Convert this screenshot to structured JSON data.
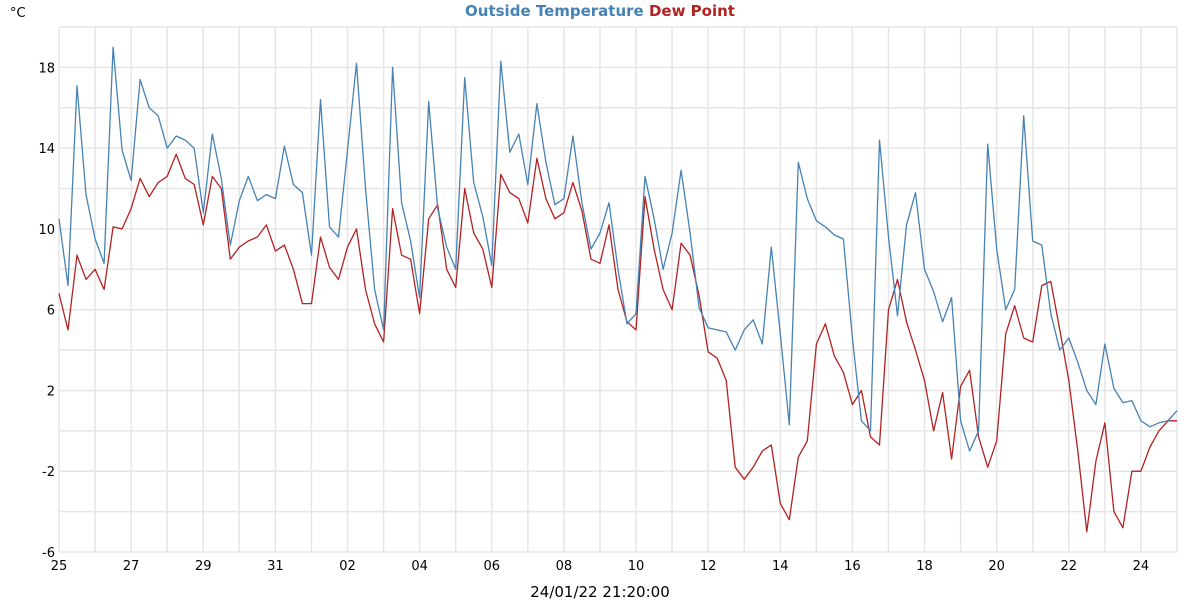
{
  "chart_data": {
    "type": "line",
    "title": "Outside Temperature Dew Point",
    "legend": [
      "Outside Temperature",
      "Dew Point"
    ],
    "ylabel": "°C",
    "xlabel": "24/01/22 21:20:00",
    "ylim": [
      -6,
      20
    ],
    "y_ticks": [
      -6,
      -2,
      2,
      6,
      10,
      14,
      18
    ],
    "y_grid_step": 2,
    "x_ticks": [
      "25",
      "27",
      "29",
      "31",
      "02",
      "04",
      "06",
      "08",
      "10",
      "12",
      "14",
      "16",
      "18",
      "20",
      "22",
      "24"
    ],
    "x_grid_days": 31,
    "x_range_days": [
      0,
      31
    ],
    "colors": {
      "Outside Temperature": "#4682b4",
      "Dew Point": "#b22222"
    },
    "series": [
      {
        "name": "Outside Temperature",
        "x_days": [
          0,
          0.25,
          0.5,
          0.75,
          1,
          1.25,
          1.5,
          1.75,
          2,
          2.25,
          2.5,
          2.75,
          3,
          3.25,
          3.5,
          3.75,
          4,
          4.25,
          4.5,
          4.75,
          5,
          5.25,
          5.5,
          5.75,
          6,
          6.25,
          6.5,
          6.75,
          7,
          7.25,
          7.5,
          7.75,
          8,
          8.25,
          8.5,
          8.75,
          9,
          9.25,
          9.5,
          9.75,
          10,
          10.25,
          10.5,
          10.75,
          11,
          11.25,
          11.5,
          11.75,
          12,
          12.25,
          12.5,
          12.75,
          13,
          13.25,
          13.5,
          13.75,
          14,
          14.25,
          14.5,
          14.75,
          15,
          15.25,
          15.5,
          15.75,
          16,
          16.25,
          16.5,
          16.75,
          17,
          17.25,
          17.5,
          17.75,
          18,
          18.25,
          18.5,
          18.75,
          19,
          19.25,
          19.5,
          19.75,
          20,
          20.25,
          20.5,
          20.75,
          21,
          21.25,
          21.5,
          21.75,
          22,
          22.25,
          22.5,
          22.75,
          23,
          23.25,
          23.5,
          23.75,
          24,
          24.25,
          24.5,
          24.75,
          25,
          25.25,
          25.5,
          25.75,
          26,
          26.25,
          26.5,
          26.75,
          27,
          27.25,
          27.5,
          27.75,
          28,
          28.25,
          28.5,
          28.75,
          29,
          29.25,
          29.5,
          29.75,
          30,
          30.25,
          30.5,
          30.75,
          31
        ],
        "values": [
          10.5,
          7.2,
          17.1,
          11.7,
          9.5,
          8.3,
          19.0,
          13.9,
          12.4,
          17.4,
          16.0,
          15.6,
          14.0,
          14.6,
          14.4,
          14.0,
          10.8,
          14.7,
          12.5,
          9.2,
          11.4,
          12.6,
          11.4,
          11.7,
          11.5,
          14.1,
          12.2,
          11.8,
          8.7,
          16.4,
          10.1,
          9.6,
          13.9,
          18.2,
          12.0,
          7.0,
          5.0,
          18.0,
          11.3,
          9.4,
          6.6,
          16.3,
          11.0,
          9.1,
          8.0,
          17.5,
          12.3,
          10.6,
          8.2,
          18.3,
          13.8,
          14.7,
          12.2,
          16.2,
          13.3,
          11.2,
          11.5,
          14.6,
          11.3,
          9.0,
          9.8,
          11.3,
          8.0,
          5.3,
          5.8,
          12.6,
          10.5,
          8.0,
          9.8,
          12.9,
          9.8,
          6.1,
          5.1,
          5.0,
          4.9,
          4.0,
          5.0,
          5.5,
          4.3,
          9.1,
          4.8,
          0.3,
          13.3,
          11.5,
          10.4,
          10.1,
          9.7,
          9.5,
          4.6,
          0.5,
          0.0,
          14.4,
          9.6,
          5.7,
          10.2,
          11.8,
          8.0,
          6.9,
          5.4,
          6.6,
          0.5,
          -1.0,
          0.0,
          14.2,
          9.0,
          6.0,
          7.0,
          15.6,
          9.4,
          9.2,
          5.8,
          4.0,
          4.6,
          3.4,
          2.0,
          1.3,
          4.3,
          2.1,
          1.4,
          1.5,
          0.5,
          0.2,
          0.4,
          0.5,
          1.0
        ]
      },
      {
        "name": "Dew Point",
        "x_days": [
          0,
          0.25,
          0.5,
          0.75,
          1,
          1.25,
          1.5,
          1.75,
          2,
          2.25,
          2.5,
          2.75,
          3,
          3.25,
          3.5,
          3.75,
          4,
          4.25,
          4.5,
          4.75,
          5,
          5.25,
          5.5,
          5.75,
          6,
          6.25,
          6.5,
          6.75,
          7,
          7.25,
          7.5,
          7.75,
          8,
          8.25,
          8.5,
          8.75,
          9,
          9.25,
          9.5,
          9.75,
          10,
          10.25,
          10.5,
          10.75,
          11,
          11.25,
          11.5,
          11.75,
          12,
          12.25,
          12.5,
          12.75,
          13,
          13.25,
          13.5,
          13.75,
          14,
          14.25,
          14.5,
          14.75,
          15,
          15.25,
          15.5,
          15.75,
          16,
          16.25,
          16.5,
          16.75,
          17,
          17.25,
          17.5,
          17.75,
          18,
          18.25,
          18.5,
          18.75,
          19,
          19.25,
          19.5,
          19.75,
          20,
          20.25,
          20.5,
          20.75,
          21,
          21.25,
          21.5,
          21.75,
          22,
          22.25,
          22.5,
          22.75,
          23,
          23.25,
          23.5,
          23.75,
          24,
          24.25,
          24.5,
          24.75,
          25,
          25.25,
          25.5,
          25.75,
          26,
          26.25,
          26.5,
          26.75,
          27,
          27.25,
          27.5,
          27.75,
          28,
          28.25,
          28.5,
          28.75,
          29,
          29.25,
          29.5,
          29.75,
          30,
          30.25,
          30.5,
          30.75,
          31
        ],
        "values": [
          6.8,
          5.0,
          8.7,
          7.5,
          8.0,
          7.0,
          10.1,
          10.0,
          11.0,
          12.5,
          11.6,
          12.3,
          12.6,
          13.7,
          12.5,
          12.2,
          10.2,
          12.6,
          12.0,
          8.5,
          9.1,
          9.4,
          9.6,
          10.2,
          8.9,
          9.2,
          8.0,
          6.3,
          6.3,
          9.6,
          8.1,
          7.5,
          9.1,
          10.0,
          7.0,
          5.3,
          4.4,
          11.0,
          8.7,
          8.5,
          5.8,
          10.5,
          11.2,
          8.0,
          7.1,
          12.0,
          9.8,
          9.0,
          7.1,
          12.7,
          11.8,
          11.5,
          10.3,
          13.5,
          11.5,
          10.5,
          10.8,
          12.3,
          10.9,
          8.5,
          8.3,
          10.2,
          7.0,
          5.4,
          5.0,
          11.6,
          9.0,
          7.0,
          6.0,
          9.3,
          8.7,
          6.7,
          3.9,
          3.6,
          2.5,
          -1.8,
          -2.4,
          -1.8,
          -1.0,
          -0.7,
          -3.6,
          -4.4,
          -1.3,
          -0.5,
          4.3,
          5.3,
          3.7,
          2.9,
          1.3,
          2.0,
          -0.3,
          -0.7,
          6.0,
          7.5,
          5.4,
          4.0,
          2.5,
          0.0,
          1.9,
          -1.4,
          2.2,
          3.0,
          -0.3,
          -1.8,
          -0.5,
          4.8,
          6.2,
          4.6,
          4.4,
          7.2,
          7.4,
          5.0,
          2.5,
          -1.0,
          -5.0,
          -1.5,
          0.4,
          -4.0,
          -4.8,
          -2.0,
          -2.0,
          -0.8,
          0.0,
          0.5,
          0.5
        ]
      }
    ]
  }
}
